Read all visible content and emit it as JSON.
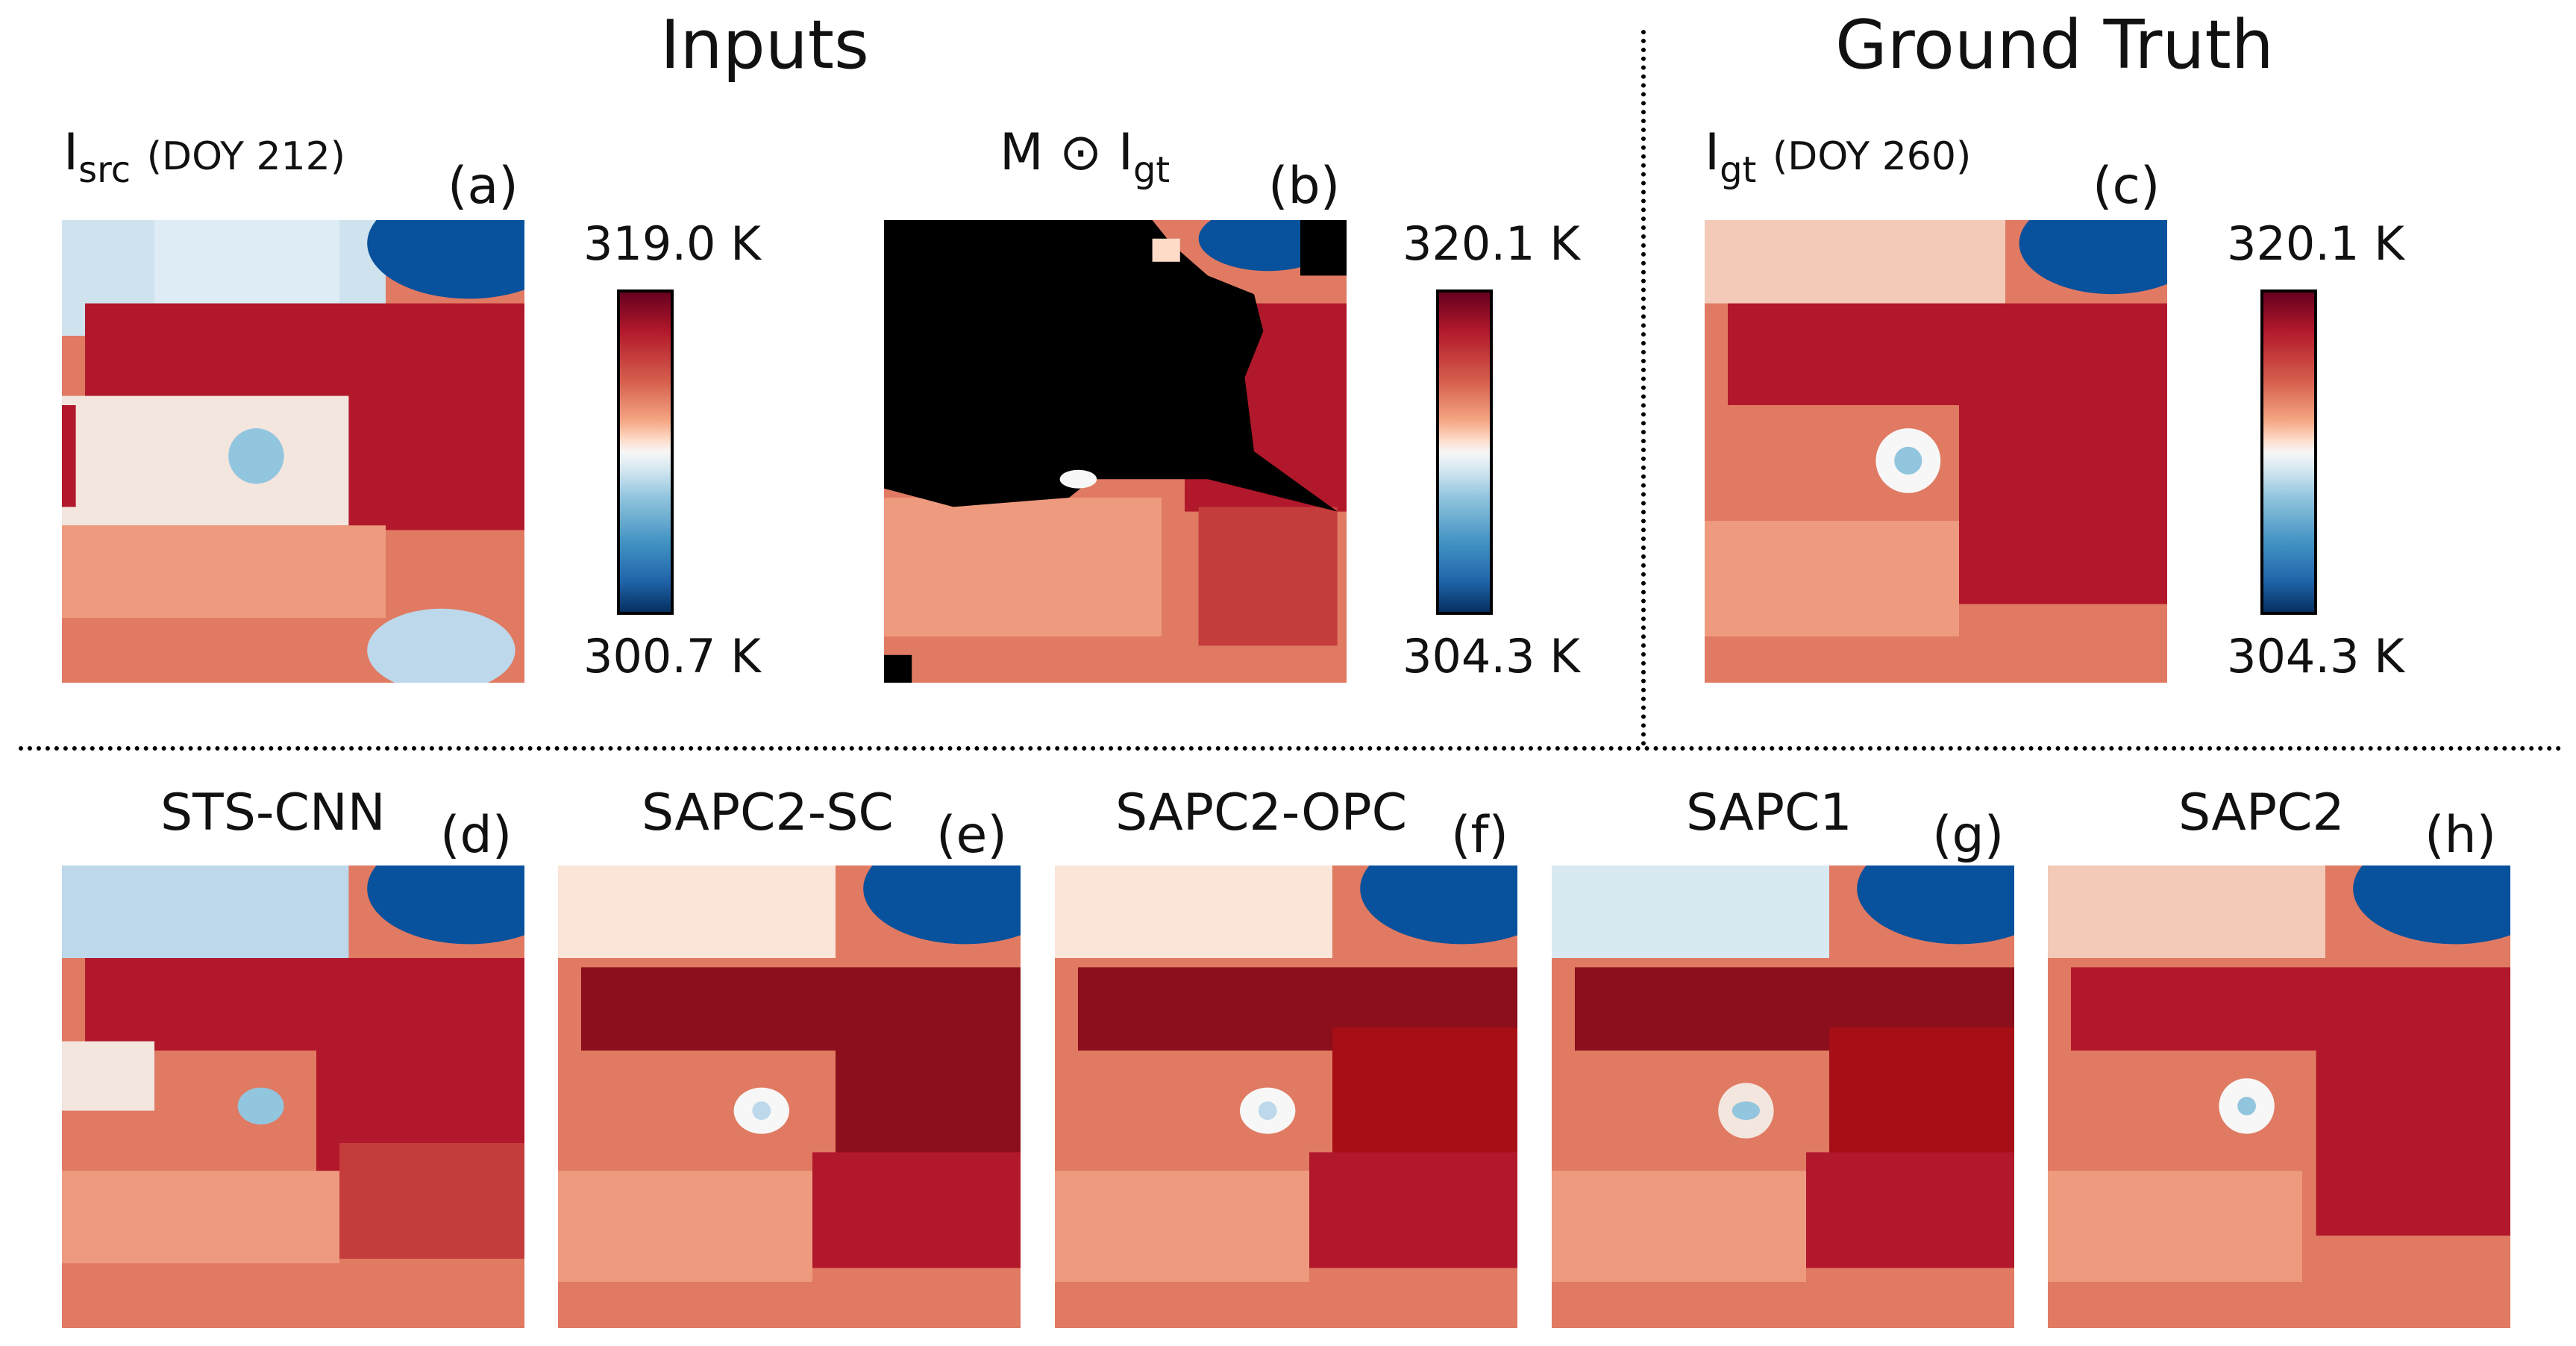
{
  "headings": {
    "inputs": "Inputs",
    "ground_truth": "Ground Truth"
  },
  "panel_a": {
    "symbol": "I",
    "subscript": "src",
    "doy": "(DOY 212)",
    "letter": "(a)"
  },
  "panel_b": {
    "prefix": "M ⊙ ",
    "symbol": "I",
    "subscript": "gt",
    "letter": "(b)"
  },
  "panel_c": {
    "symbol": "I",
    "subscript": "gt",
    "doy": "(DOY 260)",
    "letter": "(c)"
  },
  "colorbars": [
    {
      "max": "319.0 K",
      "min": "300.7 K"
    },
    {
      "max": "320.1 K",
      "min": "304.3 K"
    },
    {
      "max": "320.1 K",
      "min": "304.3 K"
    }
  ],
  "results": [
    {
      "method": "STS-CNN",
      "letter": "(d)"
    },
    {
      "method": "SAPC2-SC",
      "letter": "(e)"
    },
    {
      "method": "SAPC2-OPC",
      "letter": "(f)"
    },
    {
      "method": "SAPC1",
      "letter": "(g)"
    },
    {
      "method": "SAPC2",
      "letter": "(h)"
    }
  ],
  "colors": {
    "hot": "#a50f15",
    "warm": "#d6604d",
    "neutral": "#f7f7f7",
    "cool": "#92c5de",
    "cold": "#08519c",
    "mask": "#000000"
  }
}
